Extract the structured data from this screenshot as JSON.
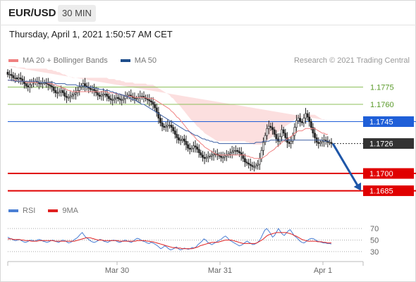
{
  "header": {
    "symbol": "EUR/USD",
    "timeframe": "30 MIN"
  },
  "timestamp": "Thursday, April 1, 2021 1:50:57 AM CET",
  "legend": [
    {
      "label": "MA 20 + Bollinger Bands",
      "color": "#f08080"
    },
    {
      "label": "MA 50",
      "color": "#1f4e8c"
    }
  ],
  "credit": "Research © 2021 Trading Central",
  "rsi_legend": [
    {
      "label": "RSI",
      "color": "#4a7fd4"
    },
    {
      "label": "9MA",
      "color": "#e02020"
    }
  ],
  "chart_data": {
    "type": "candlestick",
    "x_ticks": [
      "Mar 30",
      "Mar 31",
      "Apr 1"
    ],
    "ylim": [
      1.1678,
      1.179
    ],
    "levels": [
      {
        "value": 1.1775,
        "label": "1.1775",
        "color": "#8dbf5a",
        "style": "resistance",
        "label_color": "#5a9a2a"
      },
      {
        "value": 1.176,
        "label": "1.1760",
        "color": "#8dbf5a",
        "style": "resistance",
        "label_color": "#5a9a2a"
      },
      {
        "value": 1.1745,
        "label": "1.1745",
        "color": "#1f5fd8",
        "style": "pivot",
        "label_bg": "#1f5fd8"
      },
      {
        "value": 1.1726,
        "label": "1.1726",
        "color": "#333333",
        "style": "last",
        "label_bg": "#333333"
      },
      {
        "value": 1.17,
        "label": "1.1700",
        "color": "#e00000",
        "style": "support",
        "label_bg": "#e00000"
      },
      {
        "value": 1.1685,
        "label": "1.1685",
        "color": "#e00000",
        "style": "support",
        "label_bg": "#e00000"
      }
    ],
    "closes": [
      1.1786,
      1.1786,
      1.1785,
      1.1783,
      1.1783,
      1.1782,
      1.1783,
      1.1782,
      1.178,
      1.1778,
      1.1776,
      1.1775,
      1.1777,
      1.1779,
      1.1779,
      1.178,
      1.1779,
      1.1778,
      1.1778,
      1.1779,
      1.1779,
      1.1778,
      1.1777,
      1.1776,
      1.1775,
      1.1772,
      1.177,
      1.177,
      1.1771,
      1.1772,
      1.177,
      1.1767,
      1.1766,
      1.1766,
      1.1767,
      1.1768,
      1.1769,
      1.177,
      1.1772,
      1.1775,
      1.1776,
      1.1778,
      1.1776,
      1.1775,
      1.1774,
      1.1773,
      1.1773,
      1.1772,
      1.177,
      1.1768,
      1.1767,
      1.1768,
      1.1769,
      1.1769,
      1.1767,
      1.1765,
      1.1764,
      1.1764,
      1.1765,
      1.1766,
      1.1765,
      1.1764,
      1.1764,
      1.1765,
      1.1767,
      1.1768,
      1.1768,
      1.1767,
      1.1766,
      1.1765,
      1.1765,
      1.1766,
      1.1767,
      1.1767,
      1.1766,
      1.1765,
      1.1764,
      1.1763,
      1.1762,
      1.176,
      1.1757,
      1.1753,
      1.1748,
      1.1744,
      1.1741,
      1.174,
      1.1741,
      1.1742,
      1.1742,
      1.174,
      1.1737,
      1.1734,
      1.1731,
      1.1729,
      1.1729,
      1.173,
      1.1728,
      1.1725,
      1.1722,
      1.1721,
      1.1722,
      1.1724,
      1.1723,
      1.1721,
      1.1718,
      1.1716,
      1.1714,
      1.1713,
      1.1714,
      1.1715,
      1.1715,
      1.1716,
      1.1717,
      1.1717,
      1.1716,
      1.1715,
      1.1714,
      1.1714,
      1.1715,
      1.1716,
      1.1717,
      1.1718,
      1.1719,
      1.172,
      1.172,
      1.1719,
      1.1718,
      1.1716,
      1.1713,
      1.171,
      1.1709,
      1.1708,
      1.1707,
      1.1706,
      1.1706,
      1.1707,
      1.1708,
      1.1713,
      1.172,
      1.1727,
      1.1733,
      1.1739,
      1.1741,
      1.174,
      1.1738,
      1.1734,
      1.173,
      1.1728,
      1.1732,
      1.1738,
      1.1735,
      1.1731,
      1.1727,
      1.1726,
      1.1728,
      1.1733,
      1.174,
      1.1746,
      1.1748,
      1.1745,
      1.1744,
      1.1748,
      1.1752,
      1.1749,
      1.1745,
      1.174,
      1.1735,
      1.1731,
      1.1727,
      1.1726,
      1.1727,
      1.1728,
      1.1729,
      1.1728,
      1.1727,
      1.1727,
      1.1726
    ],
    "ma20": [
      1.1781,
      1.1781,
      1.1781,
      1.1781,
      1.1781,
      1.178,
      1.178,
      1.178,
      1.178,
      1.178,
      1.1779,
      1.1779,
      1.1779,
      1.1779,
      1.1779,
      1.1779,
      1.1779,
      1.1779,
      1.1779,
      1.1779,
      1.1779,
      1.1779,
      1.1778,
      1.1778,
      1.1778,
      1.1777,
      1.1777,
      1.1776,
      1.1776,
      1.1775,
      1.1774,
      1.1774,
      1.1773,
      1.1772,
      1.1772,
      1.1771,
      1.1771,
      1.1771,
      1.1771,
      1.1771,
      1.1771,
      1.1771,
      1.1771,
      1.1771,
      1.1771,
      1.1771,
      1.1771,
      1.1771,
      1.1771,
      1.1771,
      1.1771,
      1.1771,
      1.1771,
      1.1771,
      1.1771,
      1.177,
      1.177,
      1.177,
      1.177,
      1.1769,
      1.1769,
      1.1769,
      1.1768,
      1.1768,
      1.1767,
      1.1767,
      1.1767,
      1.1767,
      1.1767,
      1.1766,
      1.1766,
      1.1766,
      1.1766,
      1.1766,
      1.1766,
      1.1766,
      1.1765,
      1.1765,
      1.1765,
      1.1765,
      1.1764,
      1.1763,
      1.1762,
      1.1761,
      1.176,
      1.1759,
      1.1758,
      1.1757,
      1.1756,
      1.1754,
      1.1753,
      1.1751,
      1.1749,
      1.1748,
      1.1746,
      1.1744,
      1.1742,
      1.174,
      1.1738,
      1.1736,
      1.1734,
      1.1733,
      1.1731,
      1.1729,
      1.1728,
      1.1726,
      1.1725,
      1.1723,
      1.1722,
      1.1721,
      1.172,
      1.1719,
      1.1718,
      1.1717,
      1.1716,
      1.1716,
      1.1716,
      1.1716,
      1.1716,
      1.1716,
      1.1716,
      1.1716,
      1.1716,
      1.1716,
      1.1716,
      1.1716,
      1.1716,
      1.1716,
      1.1716,
      1.1716,
      1.1715,
      1.1715,
      1.1714,
      1.1714,
      1.1713,
      1.1713,
      1.1713,
      1.1713,
      1.1713,
      1.1714,
      1.1715,
      1.1716,
      1.1718,
      1.1719,
      1.172,
      1.1721,
      1.1723,
      1.1724,
      1.1725,
      1.1727,
      1.1728,
      1.1729,
      1.173,
      1.1731,
      1.1732,
      1.1733,
      1.1735,
      1.1736,
      1.1737,
      1.1737,
      1.1737,
      1.1738,
      1.1739,
      1.1739,
      1.1739,
      1.1739,
      1.1739,
      1.1739,
      1.1738,
      1.1737,
      1.1736,
      1.1735,
      1.1735,
      1.1734,
      1.1734
    ],
    "ma50": [
      1.1781,
      1.1781,
      1.1781,
      1.1781,
      1.178,
      1.178,
      1.178,
      1.178,
      1.178,
      1.178,
      1.178,
      1.178,
      1.178,
      1.178,
      1.178,
      1.178,
      1.178,
      1.1779,
      1.1779,
      1.1779,
      1.1779,
      1.1779,
      1.1779,
      1.1779,
      1.1779,
      1.1779,
      1.1778,
      1.1778,
      1.1778,
      1.1778,
      1.1778,
      1.1778,
      1.1777,
      1.1777,
      1.1777,
      1.1777,
      1.1777,
      1.1777,
      1.1776,
      1.1776,
      1.1776,
      1.1776,
      1.1775,
      1.1775,
      1.1775,
      1.1775,
      1.1775,
      1.1774,
      1.1774,
      1.1774,
      1.1773,
      1.1773,
      1.1773,
      1.1772,
      1.1772,
      1.1772,
      1.1771,
      1.1771,
      1.177,
      1.177,
      1.1769,
      1.1769,
      1.1768,
      1.1768,
      1.1767,
      1.1767,
      1.1766,
      1.1765,
      1.1764,
      1.1764,
      1.1763,
      1.1762,
      1.1761,
      1.176,
      1.176,
      1.1759,
      1.1758,
      1.1757,
      1.1756,
      1.1755,
      1.1754,
      1.1753,
      1.1752,
      1.1751,
      1.175,
      1.1749,
      1.1748,
      1.1747,
      1.1746,
      1.1745,
      1.1744,
      1.1743,
      1.1742,
      1.1741,
      1.174,
      1.1739,
      1.1738,
      1.1737,
      1.1737,
      1.1736,
      1.1735,
      1.1734,
      1.1733,
      1.1733,
      1.1732,
      1.1731,
      1.173,
      1.173,
      1.1729,
      1.1729,
      1.1728,
      1.1728,
      1.1727,
      1.1727,
      1.1727,
      1.1726,
      1.1726,
      1.1726,
      1.1726,
      1.1726,
      1.1726,
      1.1726,
      1.1726,
      1.1726,
      1.1726,
      1.1726,
      1.1726,
      1.1726,
      1.1726,
      1.1726,
      1.1726,
      1.1726,
      1.1726,
      1.1726,
      1.1726,
      1.1727,
      1.1727,
      1.1727,
      1.1727,
      1.1728,
      1.1728,
      1.1728,
      1.1728,
      1.1729,
      1.1729,
      1.1729,
      1.1729,
      1.1729,
      1.1729,
      1.1729,
      1.1729,
      1.1729,
      1.1729,
      1.1729,
      1.1729,
      1.1729,
      1.1729,
      1.1729,
      1.1729,
      1.1729,
      1.1729,
      1.1729,
      1.1729,
      1.1729,
      1.1729,
      1.1729,
      1.1729,
      1.1729,
      1.1729,
      1.1729,
      1.1729,
      1.1729,
      1.1728,
      1.1728,
      1.1728,
      1.1728
    ],
    "bb_width": 0.0012,
    "projection": {
      "from": 1.1726,
      "to": 1.1685
    },
    "rsi": {
      "levels": [
        70,
        50,
        30
      ],
      "ylim": [
        20,
        80
      ],
      "rsi": [
        55,
        53,
        52,
        50,
        49,
        50,
        51,
        49,
        47,
        46,
        47,
        49,
        50,
        49,
        48,
        50,
        51,
        50,
        48,
        47,
        46,
        47,
        49,
        50,
        48,
        47,
        46,
        48,
        50,
        49,
        47,
        45,
        46,
        48,
        51,
        53,
        56,
        60,
        63,
        58,
        54,
        52,
        49,
        47,
        46,
        47,
        49,
        51,
        50,
        48,
        47,
        46,
        48,
        49,
        50,
        49,
        47,
        46,
        47,
        49,
        50,
        48,
        47,
        46,
        48,
        51,
        53,
        52,
        50,
        48,
        47,
        45,
        44,
        46,
        45,
        43,
        41,
        38,
        35,
        37,
        40,
        38,
        35,
        33,
        34,
        36,
        38,
        35,
        33,
        34,
        36,
        35,
        34,
        35,
        37,
        36,
        38,
        42,
        45,
        48,
        52,
        50,
        46,
        44,
        42,
        44,
        46,
        48,
        50,
        52,
        55,
        57,
        54,
        50,
        48,
        46,
        44,
        42,
        40,
        41,
        43,
        46,
        48,
        46,
        44,
        42,
        43,
        45,
        48,
        53,
        60,
        67,
        70,
        66,
        61,
        55,
        58,
        64,
        70,
        65,
        60,
        58,
        62,
        66,
        68,
        63,
        58,
        55,
        52,
        48,
        46,
        45,
        47,
        50,
        52,
        53,
        52,
        50,
        48,
        47,
        46,
        45,
        45,
        44,
        44,
        43
      ],
      "ma9": [
        52,
        52,
        52,
        51,
        51,
        51,
        51,
        50,
        50,
        49,
        49,
        49,
        48,
        48,
        48,
        48,
        49,
        49,
        49,
        49,
        49,
        49,
        49,
        49,
        48,
        48,
        48,
        48,
        48,
        48,
        48,
        48,
        48,
        48,
        48,
        49,
        50,
        51,
        52,
        53,
        54,
        54,
        54,
        53,
        52,
        51,
        50,
        50,
        50,
        49,
        49,
        49,
        49,
        49,
        49,
        49,
        49,
        48,
        48,
        48,
        48,
        48,
        48,
        48,
        48,
        48,
        49,
        49,
        49,
        49,
        49,
        48,
        48,
        47,
        47,
        46,
        45,
        44,
        43,
        42,
        41,
        40,
        39,
        38,
        37,
        37,
        36,
        36,
        36,
        35,
        35,
        35,
        35,
        35,
        35,
        36,
        37,
        38,
        40,
        41,
        42,
        43,
        44,
        45,
        46,
        46,
        46,
        46,
        47,
        48,
        49,
        50,
        50,
        50,
        50,
        49,
        48,
        47,
        46,
        45,
        44,
        44,
        44,
        44,
        44,
        44,
        44,
        45,
        47,
        49,
        51,
        54,
        57,
        59,
        60,
        61,
        62,
        63,
        63,
        63,
        63,
        63,
        63,
        62,
        61,
        60,
        58,
        57,
        55,
        53,
        51,
        50,
        49,
        48,
        48,
        48,
        48,
        48,
        47,
        47,
        47,
        46,
        46,
        45,
        45,
        45
      ]
    }
  }
}
